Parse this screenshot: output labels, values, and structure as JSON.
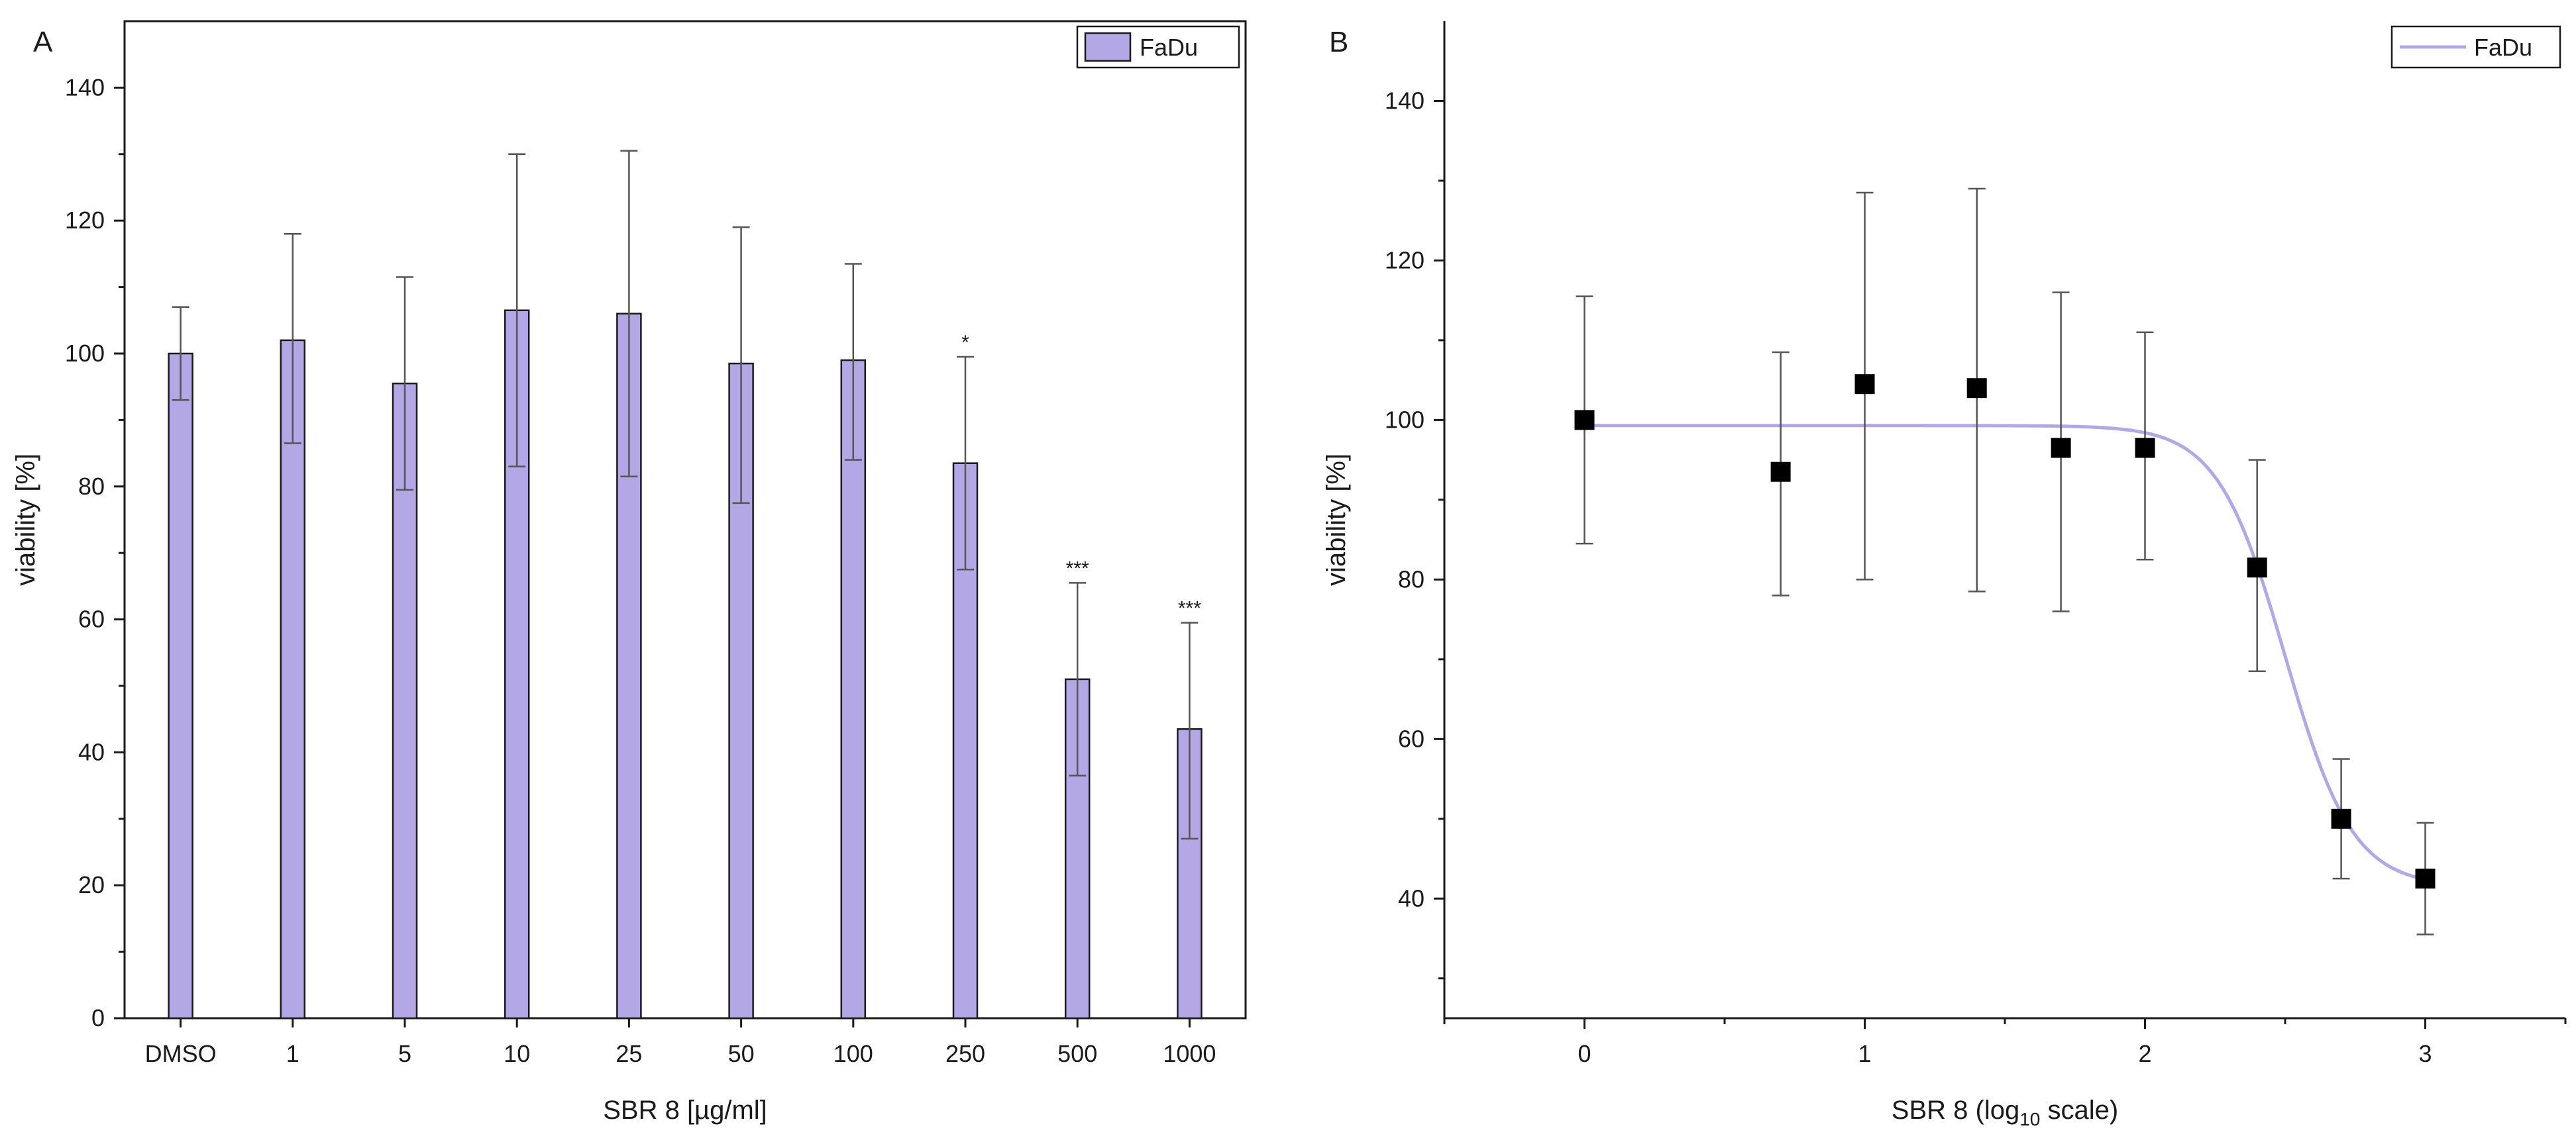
{
  "colors": {
    "bar_fill": "#b4a7e6",
    "curve": "#b4a7e6",
    "axis": "#1a1a1a",
    "errorbar": "#555555",
    "marker": "#000000"
  },
  "chart_data": [
    {
      "panel": "A",
      "type": "bar",
      "title": "",
      "legend": [
        "FaDu"
      ],
      "legend_position": "top-right",
      "xlabel": "SBR 8 [µg/ml]",
      "ylabel": "viability [%]",
      "ylim": [
        0,
        150
      ],
      "yticks": [
        "0",
        "20",
        "40",
        "60",
        "80",
        "100",
        "120",
        "140"
      ],
      "categories": [
        "DMSO",
        "1",
        "5",
        "10",
        "25",
        "50",
        "100",
        "250",
        "500",
        "1000"
      ],
      "values": [
        100,
        102,
        95.5,
        106.5,
        106,
        98.5,
        99,
        83.5,
        51,
        43.5
      ],
      "error_upper": [
        107,
        118,
        111.5,
        130,
        130.5,
        119,
        113.5,
        99.5,
        65.5,
        59.5
      ],
      "error_lower": [
        93,
        86.5,
        79.5,
        83,
        81.5,
        77.5,
        84,
        67.5,
        36.5,
        27
      ],
      "significance": [
        "",
        "",
        "",
        "",
        "",
        "",
        "",
        "*",
        "***",
        "***"
      ]
    },
    {
      "panel": "B",
      "type": "scatter",
      "title": "",
      "legend": [
        "FaDu"
      ],
      "legend_position": "top-right",
      "xlabel_prefix": "SBR 8 (log",
      "xlabel_subscript": "10",
      "xlabel_suffix": " scale)",
      "ylabel": "viability [%]",
      "xlim": [
        -0.5,
        3.5
      ],
      "ylim": [
        25,
        150
      ],
      "xticks": [
        "0",
        "1",
        "2",
        "3"
      ],
      "yticks": [
        "40",
        "60",
        "80",
        "100",
        "120",
        "140"
      ],
      "x": [
        0,
        0.7,
        1.0,
        1.4,
        1.7,
        2.0,
        2.4,
        2.7,
        3.0
      ],
      "y": [
        100,
        93.5,
        104.5,
        104,
        96.5,
        96.5,
        81.5,
        50,
        42.5
      ],
      "error_upper": [
        115.5,
        108.5,
        128.5,
        129,
        116,
        111,
        95,
        57.5,
        49.5
      ],
      "error_lower": [
        84.5,
        78,
        80,
        78.5,
        76,
        82.5,
        68.5,
        42.5,
        35.5
      ],
      "fit": {
        "top": 99.3,
        "bottom": 41.5,
        "logx50": 2.5,
        "hill": 3.6
      }
    }
  ]
}
